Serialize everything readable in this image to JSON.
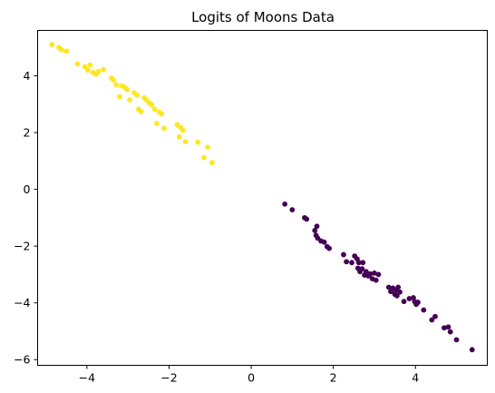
{
  "chart_data": {
    "type": "scatter",
    "title": "Logits of Moons Data",
    "xlabel": "",
    "ylabel": "",
    "xlim": [
      -5.2,
      5.75
    ],
    "ylim": [
      -6.2,
      5.6
    ],
    "xticks": [
      -4,
      -2,
      0,
      2,
      4
    ],
    "yticks": [
      -6,
      -4,
      -2,
      0,
      2,
      4
    ],
    "grid": false,
    "legend": "none",
    "series": [
      {
        "color": "#fde725",
        "points": [
          [
            -4.85,
            5.1
          ],
          [
            -4.68,
            5.0
          ],
          [
            -4.62,
            4.92
          ],
          [
            -4.5,
            4.87
          ],
          [
            -4.23,
            4.42
          ],
          [
            -4.05,
            4.32
          ],
          [
            -3.98,
            4.2
          ],
          [
            -3.92,
            4.38
          ],
          [
            -3.85,
            4.12
          ],
          [
            -3.78,
            4.06
          ],
          [
            -3.72,
            4.15
          ],
          [
            -3.6,
            4.22
          ],
          [
            -3.4,
            3.92
          ],
          [
            -3.35,
            3.85
          ],
          [
            -3.28,
            3.68
          ],
          [
            -3.2,
            3.26
          ],
          [
            -3.15,
            3.65
          ],
          [
            -3.08,
            3.6
          ],
          [
            -3.02,
            3.52
          ],
          [
            -2.96,
            3.15
          ],
          [
            -2.85,
            3.4
          ],
          [
            -2.78,
            3.32
          ],
          [
            -2.74,
            2.82
          ],
          [
            -2.68,
            2.74
          ],
          [
            -2.6,
            3.22
          ],
          [
            -2.55,
            3.15
          ],
          [
            -2.48,
            3.04
          ],
          [
            -2.42,
            2.98
          ],
          [
            -2.35,
            2.82
          ],
          [
            -2.3,
            2.32
          ],
          [
            -2.24,
            2.72
          ],
          [
            -2.18,
            2.66
          ],
          [
            -2.12,
            2.15
          ],
          [
            -1.8,
            2.28
          ],
          [
            -1.75,
            1.85
          ],
          [
            -1.72,
            2.18
          ],
          [
            -1.66,
            2.08
          ],
          [
            -1.6,
            1.68
          ],
          [
            -1.3,
            1.66
          ],
          [
            -1.15,
            1.12
          ],
          [
            -1.06,
            1.48
          ],
          [
            -0.95,
            0.94
          ]
        ]
      },
      {
        "color": "#440154",
        "points": [
          [
            0.82,
            -0.52
          ],
          [
            1.0,
            -0.72
          ],
          [
            1.3,
            -1.0
          ],
          [
            1.35,
            -1.05
          ],
          [
            1.55,
            -1.45
          ],
          [
            1.6,
            -1.3
          ],
          [
            1.58,
            -1.62
          ],
          [
            1.62,
            -1.72
          ],
          [
            1.7,
            -1.82
          ],
          [
            1.78,
            -1.86
          ],
          [
            1.85,
            -2.02
          ],
          [
            1.9,
            -2.08
          ],
          [
            2.25,
            -2.3
          ],
          [
            2.32,
            -2.55
          ],
          [
            2.45,
            -2.58
          ],
          [
            2.52,
            -2.35
          ],
          [
            2.58,
            -2.45
          ],
          [
            2.6,
            -2.78
          ],
          [
            2.62,
            -2.58
          ],
          [
            2.65,
            -2.9
          ],
          [
            2.7,
            -2.8
          ],
          [
            2.72,
            -2.58
          ],
          [
            2.76,
            -3.02
          ],
          [
            2.8,
            -2.9
          ],
          [
            2.85,
            -3.05
          ],
          [
            2.9,
            -2.98
          ],
          [
            2.95,
            -3.15
          ],
          [
            3.0,
            -2.95
          ],
          [
            3.04,
            -3.2
          ],
          [
            3.1,
            -3.0
          ],
          [
            3.35,
            -3.45
          ],
          [
            3.4,
            -3.6
          ],
          [
            3.45,
            -3.48
          ],
          [
            3.5,
            -3.7
          ],
          [
            3.52,
            -3.55
          ],
          [
            3.55,
            -3.75
          ],
          [
            3.58,
            -3.45
          ],
          [
            3.62,
            -3.62
          ],
          [
            3.72,
            -3.95
          ],
          [
            3.85,
            -3.85
          ],
          [
            3.95,
            -3.82
          ],
          [
            3.98,
            -3.95
          ],
          [
            4.02,
            -4.05
          ],
          [
            4.06,
            -3.98
          ],
          [
            4.2,
            -4.25
          ],
          [
            4.4,
            -4.6
          ],
          [
            4.48,
            -4.48
          ],
          [
            4.7,
            -4.88
          ],
          [
            4.8,
            -4.85
          ],
          [
            4.85,
            -5.02
          ],
          [
            5.0,
            -5.3
          ],
          [
            5.38,
            -5.65
          ]
        ]
      }
    ]
  }
}
